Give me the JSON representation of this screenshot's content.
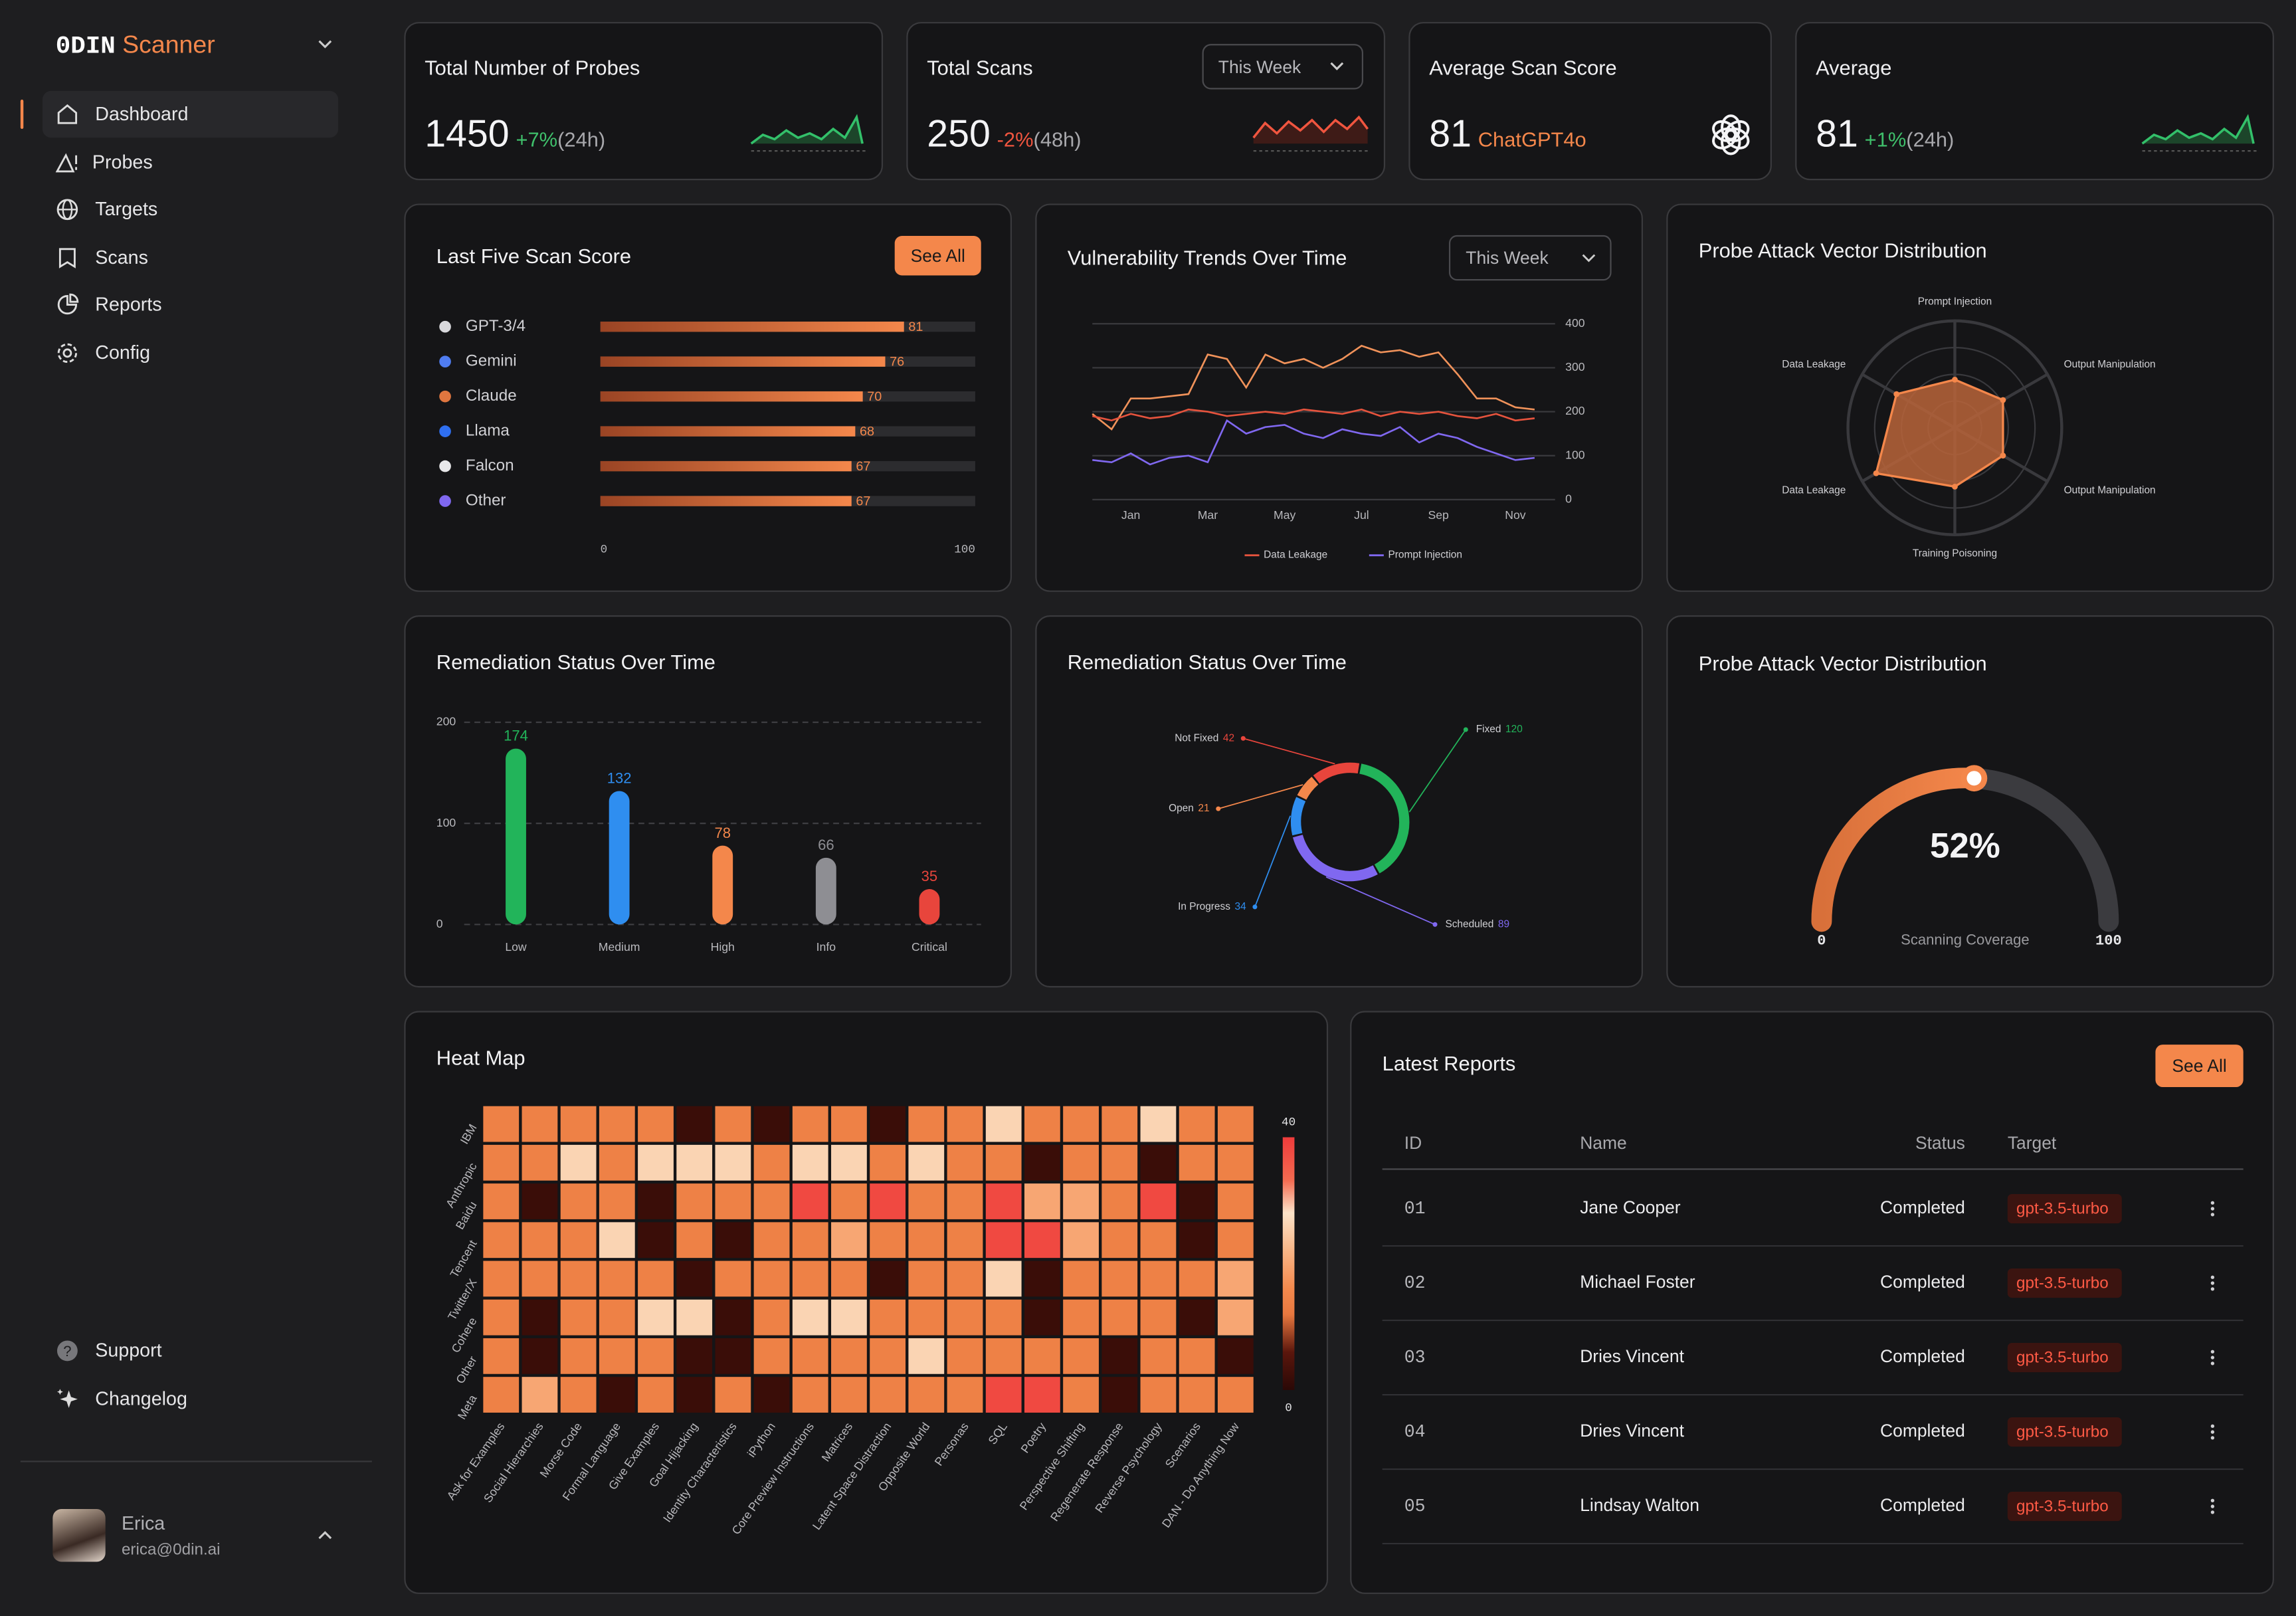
{
  "sidebar": {
    "brand": "0DIN",
    "product": "Scanner",
    "nav": [
      "Dashboard",
      "Probes",
      "Targets",
      "Scans",
      "Reports",
      "Config"
    ],
    "footer_nav": [
      "Support",
      "Changelog"
    ],
    "user": {
      "name": "Erica",
      "email": "erica@0din.ai"
    }
  },
  "stats": [
    {
      "title": "Total Number of Probes",
      "value": 1450,
      "change": "+7%",
      "period": "(24h)"
    },
    {
      "title": "Total Scans",
      "value": 250,
      "change": "-2%",
      "period": "(48h)",
      "filter": "This Week"
    },
    {
      "title": "Average Scan Score",
      "value": 81,
      "model": "ChatGPT4o"
    },
    {
      "title": "Average",
      "value": 81,
      "change": "+1%",
      "period": "(24h)"
    }
  ],
  "chart_data": [
    {
      "type": "bar",
      "orientation": "horizontal",
      "title": "Last Five Scan Score",
      "button": "See All",
      "categories": [
        "GPT-3/4",
        "Gemini",
        "Claude",
        "Llama",
        "Falcon",
        "Other"
      ],
      "values": [
        81,
        76,
        70,
        68,
        67,
        67
      ],
      "color": "#f4874b",
      "xlim": [
        0,
        100
      ],
      "xticks": [
        0,
        100
      ]
    },
    {
      "type": "line",
      "title": "Vulnerability Trends Over Time",
      "filter": "This Week",
      "categories": [
        null,
        null,
        "Jan",
        null,
        null,
        null,
        "Mar",
        null,
        null,
        null,
        "May",
        null,
        null,
        null,
        "Jul",
        null,
        null,
        null,
        "Sep",
        null,
        null,
        null,
        "Nov",
        null
      ],
      "series": [
        {
          "color": "#f0925a",
          "values": [
            195,
            160,
            230,
            230,
            235,
            240,
            330,
            320,
            255,
            330,
            310,
            320,
            300,
            320,
            350,
            335,
            340,
            325,
            335,
            285,
            230,
            230,
            210,
            205
          ]
        },
        {
          "name": "Data Leakage",
          "color": "#e5533d",
          "values": [
            190,
            180,
            195,
            185,
            190,
            205,
            200,
            190,
            195,
            200,
            195,
            205,
            200,
            195,
            205,
            190,
            200,
            195,
            200,
            190,
            185,
            195,
            180,
            185
          ]
        },
        {
          "name": "Prompt Injection",
          "color": "#8068f0",
          "values": [
            90,
            85,
            105,
            80,
            95,
            100,
            85,
            180,
            150,
            165,
            170,
            150,
            140,
            160,
            150,
            145,
            165,
            130,
            150,
            140,
            120,
            105,
            90,
            95
          ]
        }
      ],
      "ylim": [
        0,
        400
      ],
      "yticks": [
        0,
        100,
        200,
        300,
        400
      ],
      "grid": true
    },
    {
      "type": "radar",
      "title": "Probe Attack Vector Distribution",
      "axes": [
        "Prompt Injection",
        "Output Manipulation",
        "Output Manipulation",
        "Training Poisoning",
        "Data Leakage",
        "Data Leakage"
      ],
      "values": [
        45,
        52,
        52,
        55,
        85,
        63
      ],
      "rlim": [
        0,
        100
      ],
      "color": "#f4874b"
    },
    {
      "type": "bar",
      "orientation": "vertical",
      "title": "Remediation Status Over Time",
      "categories": [
        "Low",
        "Medium",
        "High",
        "Info",
        "Critical"
      ],
      "values": [
        174,
        132,
        78,
        66,
        35
      ],
      "colors": [
        "#22b45a",
        "#2f8ef0",
        "#f4874b",
        "#8e8e93",
        "#e8453c"
      ],
      "ylim": [
        0,
        200
      ],
      "yticks": [
        0,
        100,
        200
      ],
      "grid": true
    },
    {
      "type": "donut",
      "title": "Remediation Status Over Time",
      "categories": [
        "Fixed",
        "Scheduled",
        "In Progress",
        "Open",
        "Not Fixed"
      ],
      "values": [
        120,
        89,
        34,
        21,
        42
      ],
      "colors": [
        "#22b45a",
        "#8068f0",
        "#2f8ef0",
        "#f4874b",
        "#e8453c"
      ]
    },
    {
      "type": "gauge",
      "title": "Probe Attack Vector Distribution",
      "values": [
        52
      ],
      "value_labels": [
        "52%"
      ],
      "label": "Scanning Coverage",
      "ylim": [
        0,
        100
      ],
      "yticks": [
        0,
        100
      ],
      "color": "#f4874b"
    },
    {
      "type": "heatmap",
      "title": "Heat Map",
      "rows": [
        "IBM",
        "Anthropic",
        "Baidu",
        "Tencent",
        "Twitter/X",
        "Cohere",
        "Other",
        "Meta"
      ],
      "columns": [
        "Ask for Examples",
        "Social Hierarchies",
        "Morse Code",
        "Formal Language",
        "Give Examples",
        "Goal Hijacking",
        "Identity Characteristics",
        "iPython",
        "Core Preview Instructions",
        "Matrices",
        "Latent Space Distraction",
        "Opposite World",
        "Personas",
        "SQL",
        "Poetry",
        "Perspective Shifting",
        "Regenerate Response",
        "Reverse Psychology",
        "Scenarios",
        "DAN - Do Anything Now"
      ],
      "values": [
        [
          14,
          14,
          14,
          14,
          14,
          2,
          14,
          2,
          14,
          14,
          2,
          14,
          14,
          26,
          14,
          14,
          14,
          26,
          14,
          14
        ],
        [
          14,
          14,
          26,
          14,
          26,
          26,
          26,
          14,
          26,
          26,
          14,
          26,
          14,
          14,
          2,
          14,
          14,
          2,
          14,
          14
        ],
        [
          14,
          2,
          14,
          14,
          2,
          14,
          14,
          14,
          38,
          14,
          38,
          14,
          14,
          38,
          20,
          20,
          14,
          38,
          2,
          14
        ],
        [
          14,
          14,
          14,
          26,
          2,
          14,
          2,
          14,
          14,
          20,
          14,
          14,
          14,
          38,
          38,
          20,
          14,
          14,
          2,
          14
        ],
        [
          14,
          14,
          14,
          14,
          14,
          2,
          14,
          14,
          14,
          14,
          2,
          14,
          14,
          26,
          2,
          14,
          14,
          14,
          14,
          20
        ],
        [
          14,
          2,
          14,
          14,
          26,
          26,
          2,
          14,
          26,
          26,
          14,
          14,
          14,
          14,
          2,
          14,
          14,
          14,
          2,
          20
        ],
        [
          14,
          2,
          14,
          14,
          14,
          2,
          2,
          14,
          14,
          14,
          14,
          26,
          14,
          14,
          14,
          14,
          2,
          14,
          14,
          2
        ],
        [
          14,
          20,
          14,
          2,
          14,
          2,
          14,
          2,
          14,
          14,
          14,
          14,
          14,
          38,
          38,
          14,
          2,
          14,
          14,
          14
        ]
      ],
      "zlim": [
        0,
        40
      ],
      "zticks": [
        0,
        40
      ]
    }
  ],
  "reports": {
    "title": "Latest Reports",
    "button": "See All",
    "columns": [
      "ID",
      "Name",
      "Status",
      "Target"
    ],
    "rows": [
      [
        "01",
        "Jane Cooper",
        "Completed",
        "gpt-3.5-turbo"
      ],
      [
        "02",
        "Michael Foster",
        "Completed",
        "gpt-3.5-turbo"
      ],
      [
        "03",
        "Dries Vincent",
        "Completed",
        "gpt-3.5-turbo"
      ],
      [
        "04",
        "Dries Vincent",
        "Completed",
        "gpt-3.5-turbo"
      ],
      [
        "05",
        "Lindsay Walton",
        "Completed",
        "gpt-3.5-turbo"
      ]
    ]
  }
}
